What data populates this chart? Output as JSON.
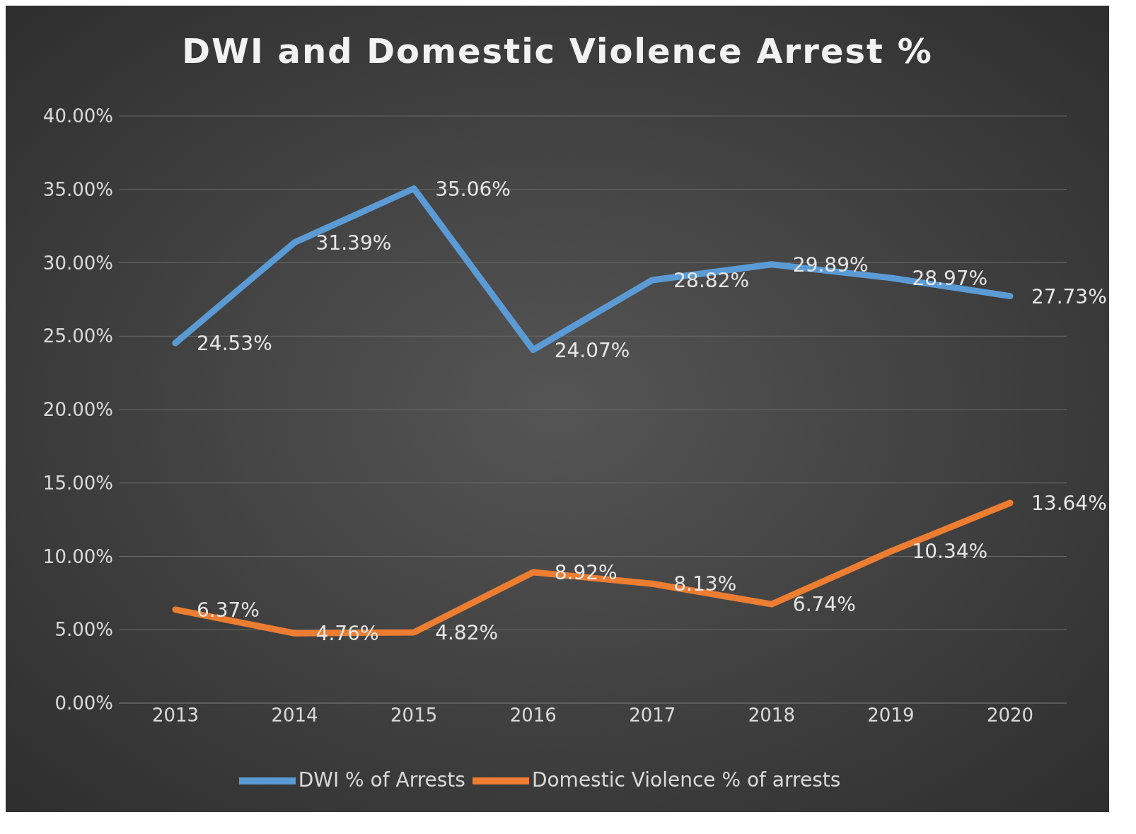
{
  "chart_data": {
    "type": "line",
    "title": "DWI and Domestic Violence Arrest %",
    "categories": [
      "2013",
      "2014",
      "2015",
      "2016",
      "2017",
      "2018",
      "2019",
      "2020"
    ],
    "series": [
      {
        "name": "DWI % of Arrests",
        "color": "#5b9bd5",
        "values": [
          24.53,
          31.39,
          35.06,
          24.07,
          28.82,
          29.89,
          28.97,
          27.73
        ],
        "value_labels": [
          "24.53%",
          "31.39%",
          "35.06%",
          "24.07%",
          "28.82%",
          "29.89%",
          "28.97%",
          "27.73%"
        ]
      },
      {
        "name": "Domestic Violence % of arrests",
        "color": "#ed7d31",
        "values": [
          6.37,
          4.76,
          4.82,
          8.92,
          8.13,
          6.74,
          10.34,
          13.64
        ],
        "value_labels": [
          "6.37%",
          "4.76%",
          "4.82%",
          "8.92%",
          "8.13%",
          "6.74%",
          "10.34%",
          "13.64%"
        ]
      }
    ],
    "ylim": [
      0,
      40
    ],
    "yticks": [
      {
        "value": 0,
        "label": "0.00%"
      },
      {
        "value": 5,
        "label": "5.00%"
      },
      {
        "value": 10,
        "label": "10.00%"
      },
      {
        "value": 15,
        "label": "15.00%"
      },
      {
        "value": 20,
        "label": "20.00%"
      },
      {
        "value": 25,
        "label": "25.00%"
      },
      {
        "value": 30,
        "label": "30.00%"
      },
      {
        "value": 35,
        "label": "35.00%"
      },
      {
        "value": 40,
        "label": "40.00%"
      }
    ],
    "grid": "y",
    "legend": "bottom",
    "marker": "none",
    "line_style": "solid"
  }
}
